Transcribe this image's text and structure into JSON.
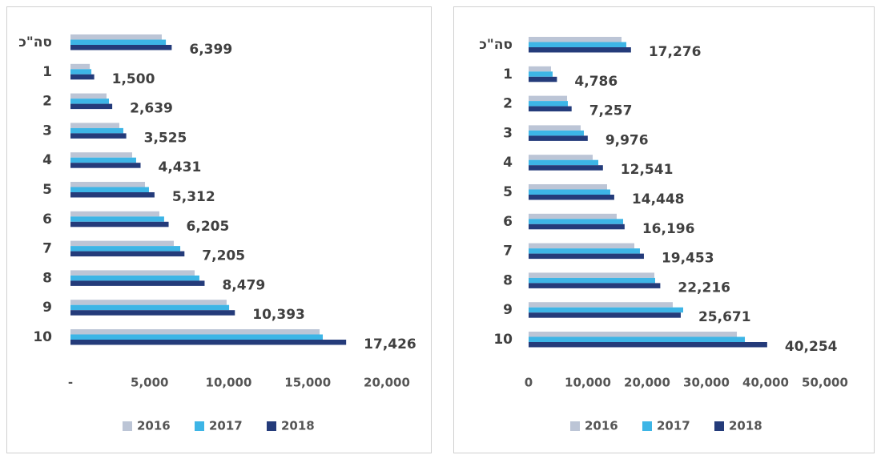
{
  "chart_data": [
    {
      "type": "bar",
      "orientation": "horizontal",
      "categories": [
        "סה\"כ",
        "1",
        "2",
        "3",
        "4",
        "5",
        "6",
        "7",
        "8",
        "9",
        "10"
      ],
      "series": [
        {
          "name": "2016",
          "color": "#bcc5d6",
          "values": [
            5770,
            1220,
            2280,
            3090,
            3900,
            4710,
            5620,
            6530,
            7850,
            9870,
            15750
          ]
        },
        {
          "name": "2017",
          "color": "#3db5e6",
          "values": [
            6030,
            1320,
            2430,
            3340,
            4150,
            4960,
            5920,
            6940,
            8150,
            10030,
            15950
          ]
        },
        {
          "name": "2018",
          "color": "#243b7a",
          "values": [
            6399,
            1500,
            2639,
            3525,
            4431,
            5312,
            6205,
            7205,
            8479,
            10393,
            17426
          ],
          "value_labels": [
            "6,399",
            "1,500",
            "2,639",
            "3,525",
            "4,431",
            "5,312",
            "6,205",
            "7,205",
            "8,479",
            "10,393",
            "17,426"
          ]
        }
      ],
      "xlim": [
        0,
        20000
      ],
      "xticks": [
        {
          "value": 0,
          "label": "-"
        },
        {
          "value": 5000,
          "label": "5,000"
        },
        {
          "value": 10000,
          "label": "10,000"
        },
        {
          "value": 15000,
          "label": "15,000"
        },
        {
          "value": 20000,
          "label": "20,000"
        }
      ],
      "legend": "bottom",
      "grid": false
    },
    {
      "type": "bar",
      "orientation": "horizontal",
      "categories": [
        "סה\"כ",
        "1",
        "2",
        "3",
        "4",
        "5",
        "6",
        "7",
        "8",
        "9",
        "10"
      ],
      "series": [
        {
          "name": "2016",
          "color": "#bcc5d6",
          "values": [
            15680,
            3780,
            6490,
            8780,
            10810,
            13240,
            14860,
            17840,
            21220,
            24320,
            35140
          ]
        },
        {
          "name": "2017",
          "color": "#3db5e6",
          "values": [
            16490,
            4050,
            6620,
            9320,
            11760,
            13780,
            15950,
            18780,
            21350,
            26080,
            36490
          ]
        },
        {
          "name": "2018",
          "color": "#243b7a",
          "values": [
            17276,
            4786,
            7257,
            9976,
            12541,
            14448,
            16196,
            19453,
            22216,
            25671,
            40254
          ],
          "value_labels": [
            "17,276",
            "4,786",
            "7,257",
            "9,976",
            "12,541",
            "14,448",
            "16,196",
            "19,453",
            "22,216",
            "25,671",
            "40,254"
          ]
        }
      ],
      "xlim": [
        0,
        50000
      ],
      "xticks": [
        0,
        {
          "value": 10000,
          "label": "10,000"
        },
        {
          "value": 20000,
          "label": "20,000"
        },
        {
          "value": 30000,
          "label": "30,000"
        },
        {
          "value": 40000,
          "label": "40,000"
        },
        {
          "value": 50000,
          "label": "50,000"
        }
      ],
      "legend": "bottom",
      "grid": false
    }
  ]
}
